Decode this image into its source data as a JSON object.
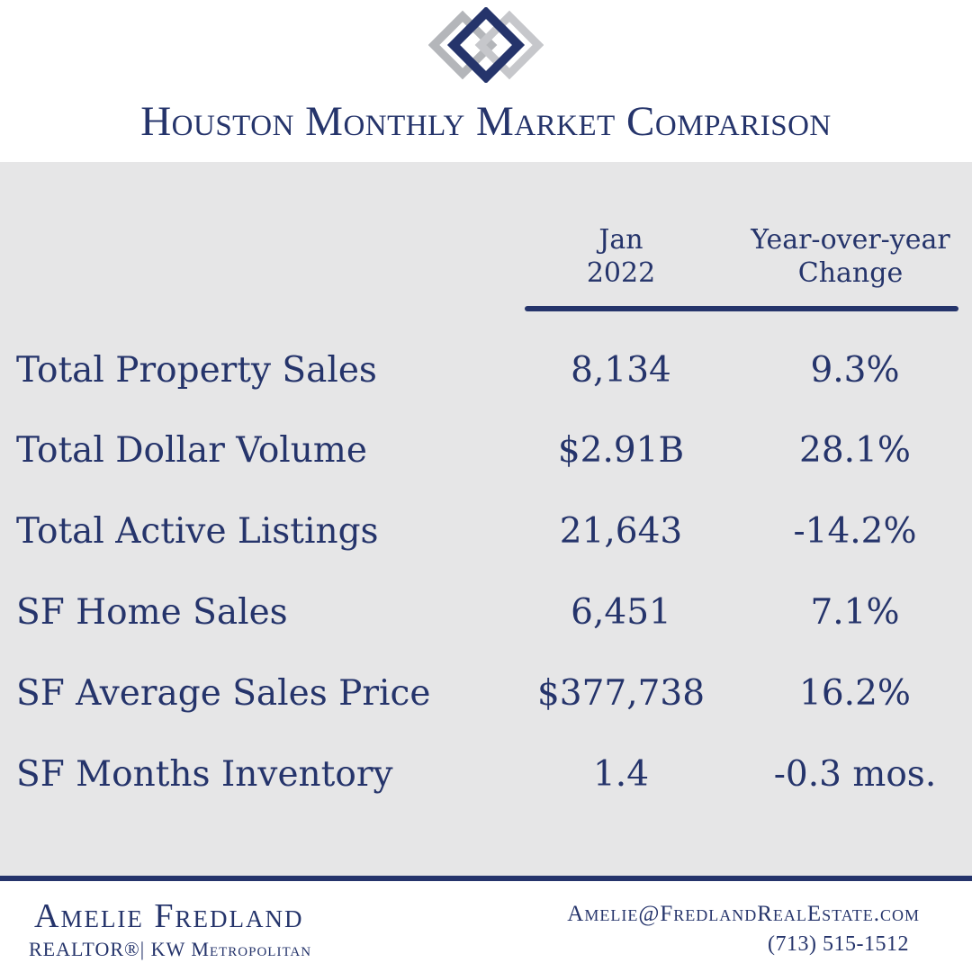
{
  "header": {
    "title": "Houston Monthly Market Comparison",
    "logo_icon": "diamond-logo-icon"
  },
  "table": {
    "columns": {
      "month_line1": "Jan",
      "month_line2": "2022",
      "change_line1": "Year-over-year",
      "change_line2": "Change"
    },
    "rows": [
      {
        "label": "Total Property Sales",
        "value": "8,134",
        "change": "9.3%"
      },
      {
        "label": "Total Dollar Volume",
        "value": "$2.91B",
        "change": "28.1%"
      },
      {
        "label": "Total Active Listings",
        "value": "21,643",
        "change": "-14.2%"
      },
      {
        "label": "SF Home Sales",
        "value": "6,451",
        "change": "7.1%"
      },
      {
        "label": "SF Average Sales Price",
        "value": "$377,738",
        "change": "16.2%"
      },
      {
        "label": "SF Months Inventory",
        "value": "1.4",
        "change": "-0.3 mos."
      }
    ]
  },
  "footer": {
    "name": "Amelie Fredland",
    "subtitle": "REALTOR®| KW Metropolitan",
    "email": "Amelie@FredlandRealEstate.com",
    "phone": "(713) 515-1512"
  },
  "colors": {
    "navy": "#25346b",
    "panel_gray": "#e6e6e7",
    "logo_silver": "#b4b6ba"
  }
}
